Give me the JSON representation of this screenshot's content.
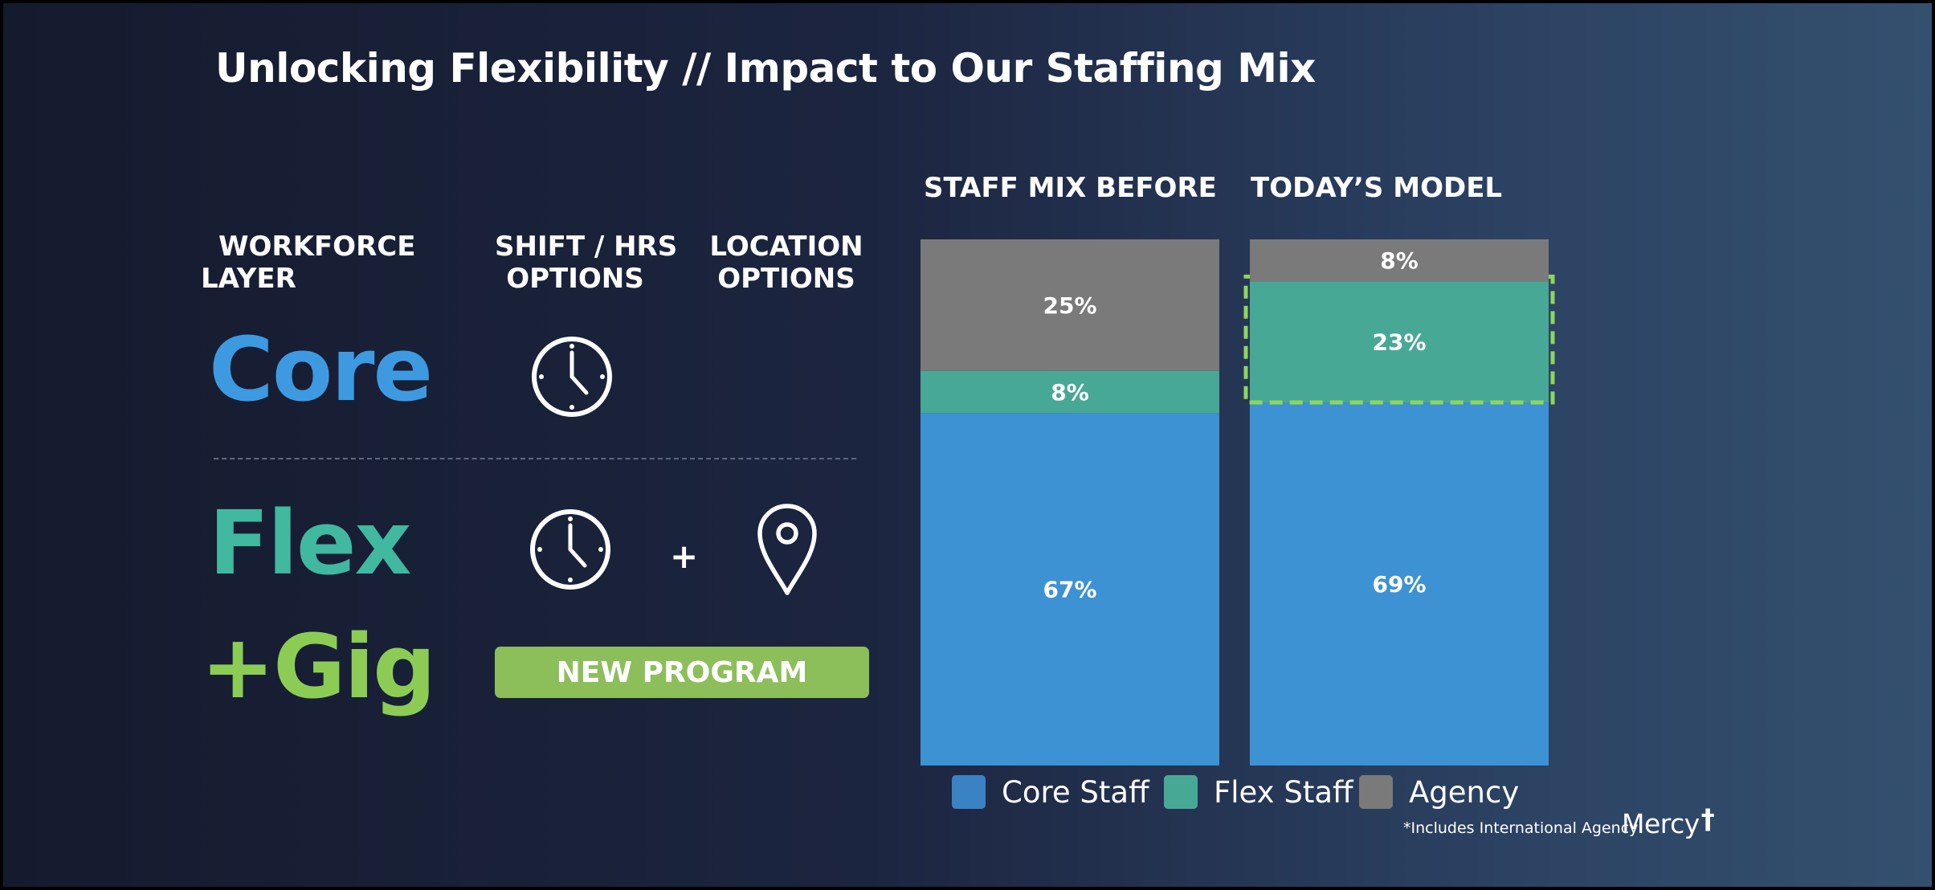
{
  "title": "Unlocking Flexibility // Impact to Our Staffing Mix",
  "column_headers": {
    "workforce": [
      "WORKFORCE",
      "LAYER"
    ],
    "shift": [
      "SHIFT / HRS",
      "OPTIONS"
    ],
    "location": [
      "LOCATION",
      "OPTIONS"
    ]
  },
  "layers": {
    "core": "Core",
    "flex": "Flex",
    "gig": "+Gig"
  },
  "icons": {
    "core_shift": "clock-icon",
    "flex_shift": "clock-icon",
    "flex_location": "map-pin-icon"
  },
  "plus_sign": "+",
  "new_program_badge": "NEW PROGRAM",
  "colors": {
    "core": "#3d92d3",
    "flex": "#48a896",
    "agency": "#7a7a7a",
    "highlight": "#8fd65c",
    "badge": "#8cbe59"
  },
  "chart_data": {
    "type": "stacked-bar",
    "categories": [
      "STAFF MIX BEFORE",
      "TODAY’S MODEL"
    ],
    "series": [
      {
        "name": "Core Staff",
        "values": [
          67,
          69
        ],
        "labels": [
          "67%",
          "69%"
        ]
      },
      {
        "name": "Flex Staff",
        "values": [
          8,
          23
        ],
        "labels": [
          "8%",
          "23%"
        ]
      },
      {
        "name": "Agency",
        "values": [
          25,
          8
        ],
        "labels": [
          "25%",
          "8%"
        ]
      }
    ],
    "highlight": {
      "category": "TODAY’S MODEL",
      "series": "Flex Staff",
      "style": "dashed-outline"
    },
    "ylim": [
      0,
      100
    ],
    "legend": [
      "Core Staff",
      "Flex Staff",
      "Agency"
    ],
    "legend_position": "bottom"
  },
  "footnote": "*Includes International Agency",
  "logo_text": "Mercy",
  "logo_mark": "†"
}
